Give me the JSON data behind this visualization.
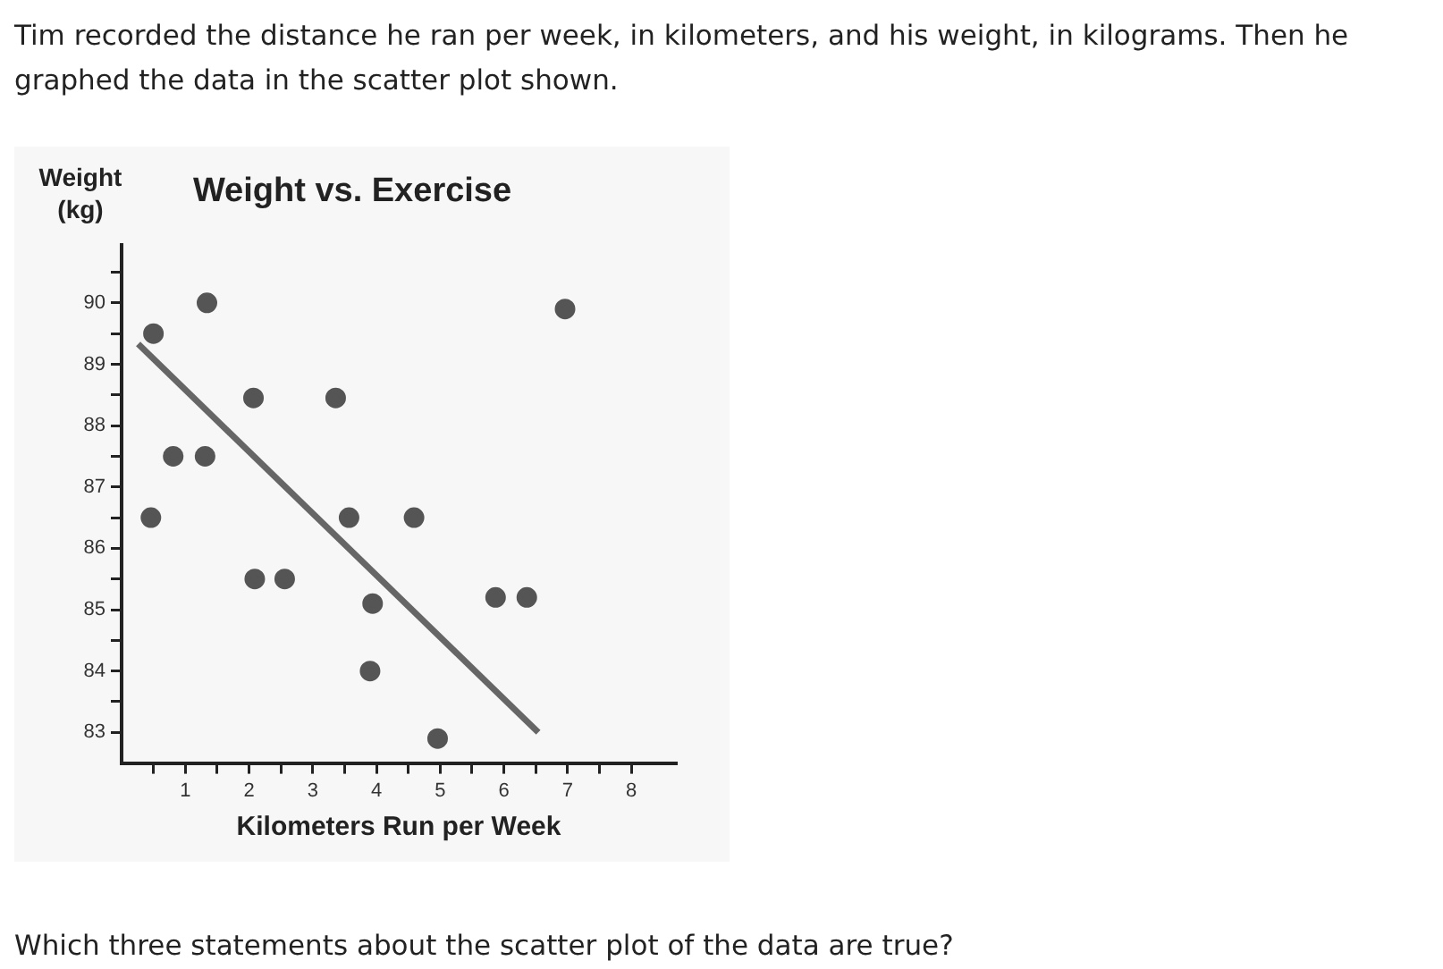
{
  "chart_data": {
    "type": "scatter",
    "title": "Weight vs. Exercise",
    "xlabel": "Kilometers Run per Week",
    "ylabel": "Weight (kg)",
    "annotations": [
      "Tim recorded the distance he ran per week, in kilometers, and his weight, in kilograms. Then he graphed the data in the scatter plot shown.",
      "Which three statements about the scatter plot of the data are true?"
    ],
    "series": [
      {
        "color": "#555555",
        "marker": "circle",
        "x": [
          0.5,
          1.34,
          0.81,
          1.31,
          0.46,
          2.07,
          3.36,
          2.09,
          2.56,
          3.57,
          4.59,
          3.94,
          3.9,
          4.96,
          5.87,
          6.36,
          6.96
        ],
        "values": [
          89.5,
          90,
          87.5,
          87.5,
          86.5,
          88.45,
          88.45,
          85.5,
          85.5,
          86.5,
          86.5,
          85.1,
          84,
          82.9,
          85.2,
          85.2,
          89.9
        ]
      },
      {
        "type": "line",
        "color": "#666666",
        "marker": "none",
        "line_style": "solid",
        "x": [
          0.26,
          6.54
        ],
        "values": [
          89.33,
          83.0
        ]
      }
    ],
    "xlim": [
      0,
      8.7
    ],
    "ylim": [
      82.5,
      90.95
    ],
    "xticks": [
      {
        "value": 0.5,
        "label": null
      },
      1,
      {
        "value": 1.5,
        "label": null
      },
      2,
      {
        "value": 2.5,
        "label": null
      },
      3,
      {
        "value": 3.5,
        "label": null
      },
      4,
      {
        "value": 4.5,
        "label": null
      },
      5,
      {
        "value": 5.5,
        "label": null
      },
      6,
      {
        "value": 6.5,
        "label": null
      },
      7,
      {
        "value": 7.5,
        "label": null
      },
      8
    ],
    "yticks": [
      83,
      {
        "value": 83.5,
        "label": null
      },
      84,
      {
        "value": 84.5,
        "label": null
      },
      85,
      {
        "value": 85.5,
        "label": null
      },
      86,
      {
        "value": 86.5,
        "label": null
      },
      87,
      {
        "value": 87.5,
        "label": null
      },
      88,
      {
        "value": 88.5,
        "label": null
      },
      89,
      {
        "value": 89.5,
        "label": null
      },
      90,
      {
        "value": 90.5,
        "label": null
      }
    ],
    "grid": false,
    "legend": false
  }
}
